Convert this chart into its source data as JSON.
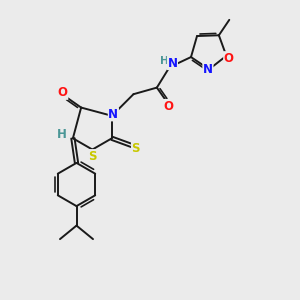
{
  "background_color": "#ebebeb",
  "bond_color": "#1a1a1a",
  "atom_colors": {
    "N": "#1414ff",
    "O": "#ff1414",
    "S": "#c8c800",
    "H": "#4a9696",
    "C": "#1a1a1a"
  },
  "lw": 1.4,
  "lw_double_inner": 0.9,
  "fs": 8.5,
  "xlim": [
    0,
    10
  ],
  "ylim": [
    0,
    10
  ]
}
